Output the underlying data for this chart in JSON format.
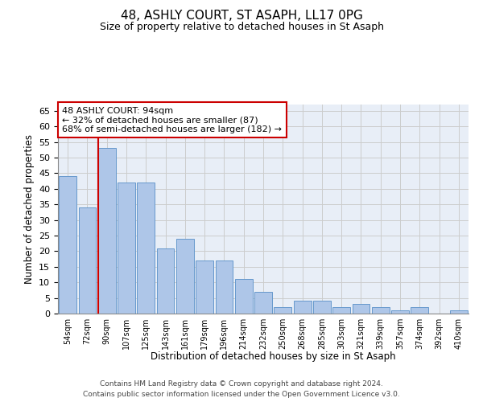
{
  "title_line1": "48, ASHLY COURT, ST ASAPH, LL17 0PG",
  "title_line2": "Size of property relative to detached houses in St Asaph",
  "xlabel": "Distribution of detached houses by size in St Asaph",
  "ylabel": "Number of detached properties",
  "footer_line1": "Contains HM Land Registry data © Crown copyright and database right 2024.",
  "footer_line2": "Contains public sector information licensed under the Open Government Licence v3.0.",
  "annotation_title": "48 ASHLY COURT: 94sqm",
  "annotation_line1": "← 32% of detached houses are smaller (87)",
  "annotation_line2": "68% of semi-detached houses are larger (182) →",
  "bar_labels": [
    "54sqm",
    "72sqm",
    "90sqm",
    "107sqm",
    "125sqm",
    "143sqm",
    "161sqm",
    "179sqm",
    "196sqm",
    "214sqm",
    "232sqm",
    "250sqm",
    "268sqm",
    "285sqm",
    "303sqm",
    "321sqm",
    "339sqm",
    "357sqm",
    "374sqm",
    "392sqm",
    "410sqm"
  ],
  "bar_heights": [
    44,
    34,
    53,
    42,
    42,
    21,
    24,
    17,
    17,
    11,
    7,
    2,
    4,
    4,
    2,
    3,
    2,
    1,
    2,
    0,
    1
  ],
  "bar_color": "#aec6e8",
  "bar_edge_color": "#6699cc",
  "vline_color": "#cc0000",
  "annotation_box_color": "#cc0000",
  "ylim": [
    0,
    67
  ],
  "yticks": [
    0,
    5,
    10,
    15,
    20,
    25,
    30,
    35,
    40,
    45,
    50,
    55,
    60,
    65
  ],
  "grid_color": "#cccccc",
  "bg_color": "#e8eef7",
  "figsize": [
    6.0,
    5.0
  ],
  "dpi": 100
}
